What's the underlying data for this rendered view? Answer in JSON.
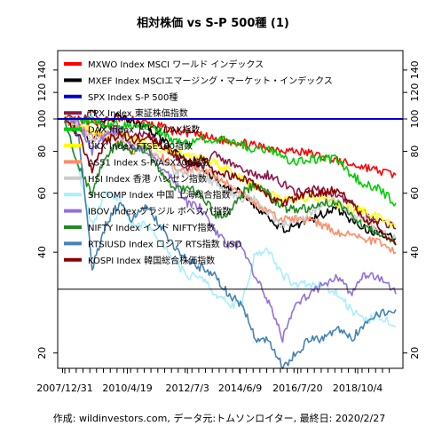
{
  "chart_data": {
    "type": "line",
    "title": "相対株価 vs S-P 500種 (1)",
    "footer": "作成: wildinvestors.com, データ元:トムソンロイター, 最終日: 2020/2/27",
    "y_scale": "log",
    "ylim": [
      18,
      160
    ],
    "y_ticks": [
      20,
      40,
      60,
      80,
      100,
      120,
      140
    ],
    "x_range": [
      "2007-12-31",
      "2020-02-27"
    ],
    "x_tick_labels": [
      "2007/12/31",
      "2010/4/19",
      "2012/7/3",
      "2014/6/9",
      "2016/7/20",
      "2018/10/4"
    ],
    "hlines": [
      100,
      31
    ],
    "grid": false,
    "legend_position": "top-left",
    "x_points": [
      "2007-12-31",
      "2008-07-01",
      "2009-01-01",
      "2009-07-01",
      "2010-01-01",
      "2010-07-01",
      "2011-01-01",
      "2011-07-01",
      "2012-01-01",
      "2012-07-01",
      "2013-01-01",
      "2013-07-01",
      "2014-01-01",
      "2014-07-01",
      "2015-01-01",
      "2015-07-01",
      "2016-01-01",
      "2016-07-01",
      "2017-01-01",
      "2017-07-01",
      "2018-01-01",
      "2018-07-01",
      "2019-01-01",
      "2019-07-01",
      "2020-02-27"
    ],
    "series": [
      {
        "name": "MXWO Index MSCI ワールド インデックス",
        "color": "#ff0000",
        "values": [
          100,
          99,
          98,
          99,
          100,
          99,
          97,
          95,
          92,
          91,
          89,
          87,
          86,
          85,
          83,
          82,
          81,
          80,
          79,
          77,
          75,
          73,
          72,
          70,
          68
        ]
      },
      {
        "name": "MXEF Index MSCIエマージング・マーケット・インデックス",
        "color": "#000000",
        "values": [
          100,
          96,
          85,
          98,
          102,
          98,
          95,
          88,
          80,
          74,
          72,
          66,
          62,
          60,
          55,
          50,
          47,
          48,
          50,
          52,
          54,
          50,
          47,
          46,
          44
        ]
      },
      {
        "name": "SPX Index S-P 500種",
        "color": "#0000cc",
        "values": [
          100,
          100,
          100,
          100,
          100,
          100,
          100,
          100,
          100,
          100,
          100,
          100,
          100,
          100,
          100,
          100,
          100,
          100,
          100,
          100,
          100,
          100,
          100,
          100,
          100
        ]
      },
      {
        "name": "TPX Index 東証株価指数",
        "color": "#8b1a4a",
        "values": [
          100,
          95,
          105,
          96,
          92,
          88,
          90,
          85,
          78,
          72,
          72,
          78,
          74,
          70,
          68,
          68,
          64,
          60,
          62,
          61,
          60,
          56,
          52,
          50,
          47
        ]
      },
      {
        "name": "DAX Index ドイツDAX指数",
        "color": "#00cc00",
        "values": [
          100,
          98,
          100,
          96,
          96,
          94,
          95,
          92,
          86,
          84,
          88,
          86,
          87,
          84,
          80,
          82,
          76,
          74,
          76,
          76,
          76,
          68,
          64,
          62,
          56
        ]
      },
      {
        "name": "UKX Index FTSE100指数",
        "color": "#ffff00",
        "values": [
          100,
          95,
          92,
          88,
          90,
          86,
          84,
          82,
          80,
          78,
          76,
          74,
          70,
          66,
          63,
          60,
          57,
          58,
          58,
          57,
          56,
          54,
          53,
          51,
          48
        ]
      },
      {
        "name": "AS51 Index S-P/ASX200指数",
        "color": "#ff8c66",
        "values": [
          100,
          96,
          88,
          90,
          86,
          80,
          82,
          78,
          72,
          70,
          70,
          68,
          64,
          60,
          56,
          52,
          50,
          50,
          50,
          48,
          46,
          45,
          44,
          43,
          40
        ]
      },
      {
        "name": "HSI Index 香港 ハンセン指数",
        "color": "#cccccc",
        "values": [
          100,
          95,
          85,
          90,
          88,
          84,
          82,
          76,
          70,
          68,
          68,
          64,
          60,
          58,
          58,
          52,
          48,
          50,
          52,
          56,
          58,
          52,
          50,
          46,
          44
        ]
      },
      {
        "name": "SHCOMP Index 中国 上海総合指数",
        "color": "#aaeeff",
        "values": [
          100,
          70,
          48,
          60,
          58,
          48,
          48,
          44,
          38,
          34,
          34,
          30,
          28,
          28,
          40,
          40,
          34,
          32,
          32,
          32,
          30,
          27,
          25,
          26,
          24
        ]
      },
      {
        "name": "IBOV Index ブラジル ボベスパ指数",
        "color": "#9370db",
        "values": [
          100,
          98,
          80,
          90,
          92,
          82,
          80,
          72,
          66,
          56,
          54,
          46,
          42,
          42,
          34,
          28,
          22,
          28,
          30,
          32,
          34,
          30,
          34,
          34,
          30
        ]
      },
      {
        "name": "NIFTY Index インド NIFTY指数",
        "color": "#228b22",
        "values": [
          100,
          72,
          60,
          78,
          84,
          80,
          82,
          70,
          62,
          62,
          60,
          52,
          52,
          60,
          64,
          60,
          54,
          54,
          54,
          56,
          56,
          52,
          48,
          46,
          42
        ]
      },
      {
        "name": "RTSIUSD Index ロシア RTS指数 USD",
        "color": "#4682b4",
        "values": [
          100,
          90,
          36,
          48,
          56,
          50,
          56,
          48,
          42,
          38,
          36,
          34,
          30,
          28,
          22,
          22,
          18,
          20,
          22,
          22,
          24,
          22,
          24,
          26,
          27
        ]
      },
      {
        "name": "KOSPI Index 韓国総合株価指数",
        "color": "#8b0000",
        "values": [
          100,
          90,
          70,
          86,
          90,
          86,
          90,
          84,
          80,
          74,
          76,
          70,
          68,
          66,
          64,
          58,
          56,
          58,
          60,
          60,
          62,
          56,
          50,
          48,
          42
        ]
      }
    ]
  }
}
